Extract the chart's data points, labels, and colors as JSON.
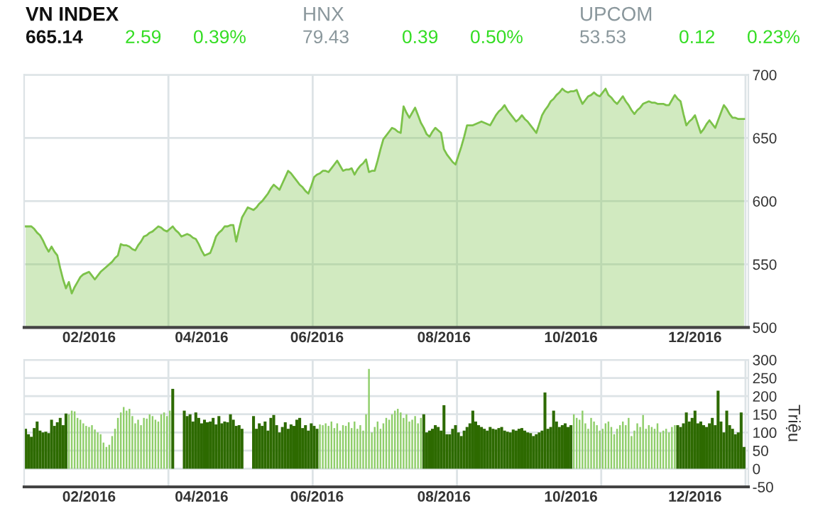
{
  "chart_data": [
    {
      "type": "other",
      "annotations": [
        "VN INDEX",
        "665.14",
        "2.59",
        "0.39%",
        "HNX",
        "79.43",
        "0.39",
        "0.50%",
        "UPCOM",
        "53.53",
        "0.12",
        "0.23%"
      ]
    },
    {
      "type": "area",
      "color": "#7cc24a",
      "ylim": [
        500,
        700
      ],
      "yticks": [
        500,
        550,
        600,
        650,
        700
      ],
      "grid": "y",
      "legend": false,
      "marker": "none",
      "categories": [
        null,
        null,
        null,
        null,
        null,
        null,
        null,
        null,
        null,
        null,
        null,
        null,
        null,
        null,
        null,
        null,
        null,
        null,
        null,
        null,
        null,
        null,
        "02/2016",
        null,
        null,
        null,
        null,
        null,
        null,
        null,
        null,
        null,
        null,
        null,
        null,
        null,
        null,
        null,
        null,
        null,
        null,
        null,
        null,
        null,
        null,
        null,
        null,
        null,
        null,
        null,
        null,
        null,
        null,
        null,
        null,
        null,
        null,
        null,
        null,
        null,
        null,
        "04/2016",
        null,
        null,
        null,
        null,
        null,
        null,
        null,
        null,
        null,
        null,
        null,
        null,
        null,
        null,
        null,
        null,
        null,
        null,
        null,
        null,
        null,
        null,
        null,
        null,
        null,
        null,
        null,
        null,
        null,
        null,
        null,
        null,
        null,
        null,
        null,
        null,
        null,
        null,
        null,
        "06/2016",
        null,
        null,
        null,
        null,
        null,
        null,
        null,
        null,
        null,
        null,
        null,
        null,
        null,
        null,
        null,
        null,
        null,
        null,
        null,
        null,
        null,
        null,
        null,
        null,
        null,
        null,
        null,
        null,
        null,
        null,
        null,
        null,
        null,
        null,
        null,
        null,
        null,
        null,
        null,
        null,
        null,
        null,
        null,
        "08/2016",
        null,
        null,
        null,
        null,
        null,
        null,
        null,
        null,
        null,
        null,
        null,
        null,
        null,
        null,
        null,
        null,
        null,
        null,
        null,
        null,
        null,
        null,
        null,
        null,
        null,
        null,
        null,
        null,
        null,
        null,
        null,
        null,
        null,
        null,
        null,
        null,
        null,
        null,
        null,
        null,
        null,
        null,
        null,
        "10/2016",
        null,
        null,
        null,
        null,
        null,
        null,
        null,
        null,
        null,
        null,
        null,
        null,
        null,
        null,
        null,
        null,
        null,
        null,
        null,
        null,
        null,
        null,
        null,
        null,
        null,
        null,
        null,
        null,
        null,
        null,
        null,
        null,
        null,
        null,
        null,
        null,
        null,
        null,
        null,
        null,
        null,
        null,
        "12/2016",
        null,
        null,
        null,
        null,
        null,
        null,
        null,
        null,
        null,
        null,
        null,
        null,
        null,
        null,
        null,
        null,
        null
      ],
      "values": [
        580,
        580,
        580,
        578,
        575,
        573,
        569,
        564,
        560,
        564,
        560,
        557,
        547,
        538,
        531,
        536,
        527,
        532,
        536,
        540,
        542,
        543,
        544,
        541,
        538,
        541,
        544,
        546,
        548,
        550,
        552,
        555,
        557,
        566,
        565,
        565,
        564,
        562,
        561,
        565,
        568,
        572,
        573,
        575,
        576,
        578,
        580,
        579,
        577,
        576,
        578,
        580,
        577,
        575,
        572,
        573,
        574,
        573,
        571,
        570,
        566,
        561,
        557,
        558,
        559,
        565,
        572,
        575,
        577,
        580,
        580,
        581,
        581,
        568,
        578,
        587,
        591,
        595,
        594,
        593,
        595,
        598,
        600,
        603,
        606,
        610,
        613,
        611,
        609,
        614,
        619,
        624,
        622,
        619,
        616,
        613,
        611,
        608,
        606,
        612,
        619,
        621,
        622,
        624,
        624,
        623,
        626,
        629,
        632,
        628,
        624,
        625,
        625,
        626,
        621,
        625,
        628,
        630,
        633,
        623,
        624,
        624,
        632,
        641,
        649,
        652,
        655,
        658,
        657,
        655,
        654,
        675,
        670,
        666,
        670,
        674,
        668,
        662,
        658,
        653,
        651,
        655,
        658,
        656,
        654,
        641,
        637,
        634,
        631,
        629,
        636,
        643,
        651,
        660,
        660,
        660,
        661,
        662,
        663,
        662,
        661,
        660,
        664,
        668,
        671,
        673,
        676,
        672,
        669,
        666,
        663,
        665,
        668,
        665,
        663,
        660,
        657,
        654,
        661,
        668,
        672,
        675,
        679,
        681,
        684,
        686,
        689,
        687,
        686,
        687,
        687,
        688,
        682,
        677,
        680,
        683,
        684,
        686,
        684,
        683,
        686,
        689,
        684,
        682,
        679,
        677,
        680,
        683,
        679,
        676,
        672,
        669,
        672,
        674,
        677,
        678,
        679,
        678,
        678,
        677,
        677,
        677,
        676,
        676,
        680,
        684,
        681,
        679,
        669,
        660,
        663,
        665,
        668,
        661,
        654,
        657,
        661,
        664,
        661,
        658,
        664,
        670,
        676,
        673,
        669,
        666,
        666,
        665,
        665,
        665
      ]
    },
    {
      "type": "bar",
      "ylabel": "Triệu",
      "ylim": [
        -50,
        300
      ],
      "yticks": [
        -50,
        0,
        50,
        100,
        150,
        200,
        250,
        300
      ],
      "grid": "y",
      "legend": false,
      "categories": [
        null,
        null,
        null,
        null,
        null,
        null,
        null,
        null,
        null,
        null,
        null,
        null,
        null,
        null,
        null,
        null,
        null,
        null,
        null,
        null,
        null,
        null,
        "02/2016",
        null,
        null,
        null,
        null,
        null,
        null,
        null,
        null,
        null,
        null,
        null,
        null,
        null,
        null,
        null,
        null,
        null,
        null,
        null,
        null,
        null,
        null,
        null,
        null,
        null,
        null,
        null,
        null,
        null,
        null,
        null,
        null,
        null,
        null,
        null,
        null,
        null,
        null,
        "04/2016",
        null,
        null,
        null,
        null,
        null,
        null,
        null,
        null,
        null,
        null,
        null,
        null,
        null,
        null,
        null,
        null,
        null,
        null,
        null,
        null,
        null,
        null,
        null,
        null,
        null,
        null,
        null,
        null,
        null,
        null,
        null,
        null,
        null,
        null,
        null,
        null,
        null,
        null,
        null,
        "06/2016",
        null,
        null,
        null,
        null,
        null,
        null,
        null,
        null,
        null,
        null,
        null,
        null,
        null,
        null,
        null,
        null,
        null,
        null,
        null,
        null,
        null,
        null,
        null,
        null,
        null,
        null,
        null,
        null,
        null,
        null,
        null,
        null,
        null,
        null,
        null,
        null,
        null,
        null,
        null,
        null,
        null,
        null,
        null,
        "08/2016",
        null,
        null,
        null,
        null,
        null,
        null,
        null,
        null,
        null,
        null,
        null,
        null,
        null,
        null,
        null,
        null,
        null,
        null,
        null,
        null,
        null,
        null,
        null,
        null,
        null,
        null,
        null,
        null,
        null,
        null,
        null,
        null,
        null,
        null,
        null,
        null,
        null,
        null,
        null,
        null,
        null,
        null,
        null,
        "10/2016",
        null,
        null,
        null,
        null,
        null,
        null,
        null,
        null,
        null,
        null,
        null,
        null,
        null,
        null,
        null,
        null,
        null,
        null,
        null,
        null,
        null,
        null,
        null,
        null,
        null,
        null,
        null,
        null,
        null,
        null,
        null,
        null,
        null,
        null,
        null,
        null,
        null,
        null,
        null,
        null,
        null,
        null,
        "12/2016",
        null,
        null,
        null,
        null,
        null,
        null,
        null,
        null,
        null,
        null,
        null,
        null,
        null,
        null,
        null,
        null,
        null
      ],
      "values": [
        110,
        95,
        88,
        112,
        130,
        105,
        100,
        102,
        98,
        135,
        118,
        128,
        140,
        120,
        152,
        150,
        160,
        158,
        140,
        135,
        125,
        118,
        115,
        120,
        108,
        100,
        95,
        72,
        60,
        66,
        90,
        110,
        140,
        155,
        170,
        160,
        165,
        145,
        125,
        135,
        120,
        140,
        138,
        150,
        145,
        135,
        130,
        150,
        155,
        145,
        160,
        220,
        null,
        null,
        null,
        160,
        145,
        150,
        130,
        155,
        140,
        125,
        135,
        128,
        130,
        140,
        122,
        145,
        125,
        130,
        128,
        150,
        135,
        118,
        120,
        110,
        null,
        null,
        null,
        145,
        110,
        125,
        118,
        130,
        105,
        140,
        148,
        120,
        100,
        115,
        128,
        110,
        122,
        118,
        135,
        140,
        112,
        120,
        105,
        125,
        118,
        110,
        122,
        120,
        125,
        118,
        130,
        112,
        125,
        105,
        120,
        118,
        128,
        112,
        130,
        110,
        120,
        105,
        150,
        275,
        100,
        115,
        130,
        110,
        125,
        140,
        135,
        150,
        160,
        165,
        155,
        140,
        150,
        130,
        135,
        145,
        125,
        140,
        150,
        100,
        105,
        110,
        120,
        115,
        105,
        175,
        95,
        95,
        110,
        120,
        100,
        90,
        105,
        115,
        125,
        160,
        130,
        120,
        115,
        110,
        105,
        115,
        110,
        108,
        112,
        115,
        105,
        102,
        100,
        108,
        105,
        110,
        112,
        105,
        100,
        98,
        90,
        95,
        100,
        105,
        210,
        110,
        115,
        160,
        130,
        115,
        120,
        125,
        115,
        120,
        150,
        140,
        135,
        160,
        125,
        110,
        140,
        130,
        120,
        105,
        110,
        125,
        130,
        115,
        95,
        110,
        120,
        130,
        120,
        140,
        90,
        105,
        125,
        115,
        148,
        110,
        120,
        115,
        110,
        125,
        100,
        105,
        110,
        100,
        115,
        120,
        120,
        115,
        125,
        155,
        130,
        140,
        160,
        125,
        130,
        120,
        115,
        125,
        140,
        120,
        215,
        130,
        100,
        160,
        120,
        110,
        95,
        100,
        155,
        60
      ],
      "colors": [
        "#2d6a00",
        "#2d6a00",
        "#2d6a00",
        "#2d6a00",
        "#2d6a00",
        "#2d6a00",
        "#2d6a00",
        "#2d6a00",
        "#2d6a00",
        "#2d6a00",
        "#2d6a00",
        "#2d6a00",
        "#2d6a00",
        "#2d6a00",
        "#2d6a00",
        "#8fce6a",
        "#8fce6a",
        "#8fce6a",
        "#8fce6a",
        "#8fce6a",
        "#8fce6a",
        "#8fce6a",
        "#8fce6a",
        "#8fce6a",
        "#8fce6a",
        "#8fce6a",
        "#8fce6a",
        "#8fce6a",
        "#8fce6a",
        "#8fce6a",
        "#8fce6a",
        "#8fce6a",
        "#8fce6a",
        "#8fce6a",
        "#8fce6a",
        "#8fce6a",
        "#8fce6a",
        "#8fce6a",
        "#8fce6a",
        "#8fce6a",
        "#8fce6a",
        "#8fce6a",
        "#8fce6a",
        "#8fce6a",
        "#8fce6a",
        "#8fce6a",
        "#8fce6a",
        "#8fce6a",
        "#8fce6a",
        "#8fce6a",
        "#8fce6a",
        "#2d6a00",
        "#2d6a00",
        "#2d6a00",
        "#2d6a00",
        "#2d6a00",
        "#2d6a00",
        "#2d6a00",
        "#2d6a00",
        "#2d6a00",
        "#2d6a00",
        "#2d6a00",
        "#2d6a00",
        "#2d6a00",
        "#2d6a00",
        "#2d6a00",
        "#2d6a00",
        "#2d6a00",
        "#2d6a00",
        "#2d6a00",
        "#2d6a00",
        "#2d6a00",
        "#2d6a00",
        "#2d6a00",
        "#2d6a00",
        "#2d6a00",
        "#2d6a00",
        "#2d6a00",
        "#2d6a00",
        "#2d6a00",
        "#2d6a00",
        "#2d6a00",
        "#2d6a00",
        "#2d6a00",
        "#2d6a00",
        "#2d6a00",
        "#2d6a00",
        "#2d6a00",
        "#2d6a00",
        "#2d6a00",
        "#2d6a00",
        "#2d6a00",
        "#2d6a00",
        "#2d6a00",
        "#2d6a00",
        "#2d6a00",
        "#2d6a00",
        "#2d6a00",
        "#2d6a00",
        "#2d6a00",
        "#2d6a00",
        "#2d6a00",
        "#8fce6a",
        "#8fce6a",
        "#8fce6a",
        "#8fce6a",
        "#8fce6a",
        "#8fce6a",
        "#8fce6a",
        "#8fce6a",
        "#8fce6a",
        "#8fce6a",
        "#8fce6a",
        "#8fce6a",
        "#8fce6a",
        "#8fce6a",
        "#8fce6a",
        "#8fce6a",
        "#8fce6a",
        "#8fce6a",
        "#8fce6a",
        "#8fce6a",
        "#8fce6a",
        "#8fce6a",
        "#8fce6a",
        "#8fce6a",
        "#8fce6a",
        "#8fce6a",
        "#8fce6a",
        "#8fce6a",
        "#8fce6a",
        "#8fce6a",
        "#8fce6a",
        "#8fce6a",
        "#8fce6a",
        "#8fce6a",
        "#8fce6a",
        "#8fce6a",
        "#2d6a00",
        "#2d6a00",
        "#2d6a00",
        "#2d6a00",
        "#2d6a00",
        "#2d6a00",
        "#2d6a00",
        "#2d6a00",
        "#2d6a00",
        "#2d6a00",
        "#2d6a00",
        "#2d6a00",
        "#2d6a00",
        "#2d6a00",
        "#2d6a00",
        "#2d6a00",
        "#2d6a00",
        "#2d6a00",
        "#2d6a00",
        "#2d6a00",
        "#2d6a00",
        "#2d6a00",
        "#2d6a00",
        "#2d6a00",
        "#2d6a00",
        "#2d6a00",
        "#2d6a00",
        "#2d6a00",
        "#2d6a00",
        "#2d6a00",
        "#2d6a00",
        "#2d6a00",
        "#2d6a00",
        "#2d6a00",
        "#2d6a00",
        "#2d6a00",
        "#2d6a00",
        "#2d6a00",
        "#2d6a00",
        "#2d6a00",
        "#2d6a00",
        "#2d6a00",
        "#2d6a00",
        "#2d6a00",
        "#2d6a00",
        "#2d6a00",
        "#2d6a00",
        "#2d6a00",
        "#2d6a00",
        "#2d6a00",
        "#2d6a00",
        "#2d6a00",
        "#8fce6a",
        "#8fce6a",
        "#8fce6a",
        "#8fce6a",
        "#8fce6a",
        "#8fce6a",
        "#8fce6a",
        "#8fce6a",
        "#8fce6a",
        "#8fce6a",
        "#8fce6a",
        "#8fce6a",
        "#8fce6a",
        "#8fce6a",
        "#8fce6a",
        "#8fce6a",
        "#8fce6a",
        "#8fce6a",
        "#8fce6a",
        "#8fce6a",
        "#8fce6a",
        "#8fce6a",
        "#8fce6a",
        "#8fce6a",
        "#8fce6a",
        "#8fce6a",
        "#8fce6a",
        "#8fce6a",
        "#8fce6a",
        "#8fce6a",
        "#8fce6a",
        "#8fce6a",
        "#8fce6a",
        "#8fce6a",
        "#8fce6a",
        "#8fce6a",
        "#2d6a00",
        "#2d6a00",
        "#2d6a00",
        "#2d6a00",
        "#2d6a00",
        "#2d6a00",
        "#2d6a00",
        "#2d6a00",
        "#2d6a00",
        "#2d6a00",
        "#2d6a00",
        "#2d6a00",
        "#2d6a00",
        "#2d6a00",
        "#2d6a00",
        "#2d6a00",
        "#2d6a00",
        "#2d6a00",
        "#2d6a00",
        "#2d6a00",
        "#2d6a00",
        "#2d6a00",
        "#2d6a00",
        "#2d6a00"
      ]
    }
  ]
}
